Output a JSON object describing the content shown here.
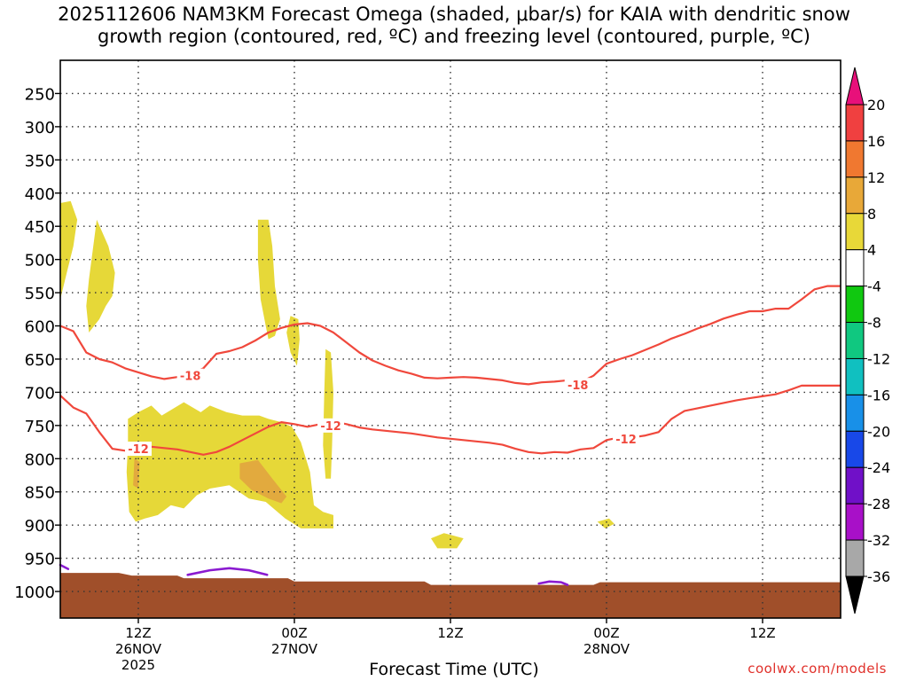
{
  "title": {
    "line1": "2025112606 NAM3KM Forecast Omega (shaded, μbar/s) for KAIA with dendritic snow",
    "line2": "growth region (contoured, red, ºC) and freezing level (contoured, purple, ºC)"
  },
  "credit": "coolwx.com/models",
  "chart_data": {
    "type": "heatmap",
    "xlabel": "Forecast Time (UTC)",
    "ylabel": "",
    "x_unit": "forecast hour from 2025-11-26 06Z",
    "xlim": [
      0,
      60
    ],
    "ylim": [
      1040,
      200
    ],
    "y_ticks": [
      250,
      300,
      350,
      400,
      450,
      500,
      550,
      600,
      650,
      700,
      750,
      800,
      850,
      900,
      950,
      1000
    ],
    "x_ticks": [
      {
        "hour": 6,
        "label": "12Z",
        "sub1": "26NOV",
        "sub2": "2025"
      },
      {
        "hour": 18,
        "label": "00Z",
        "sub1": "27NOV",
        "sub2": ""
      },
      {
        "hour": 30,
        "label": "12Z",
        "sub1": "",
        "sub2": ""
      },
      {
        "hour": 42,
        "label": "00Z",
        "sub1": "28NOV",
        "sub2": ""
      },
      {
        "hour": 54,
        "label": "12Z",
        "sub1": "",
        "sub2": ""
      }
    ],
    "colorbar": {
      "labels": [
        "20",
        "16",
        "12",
        "8",
        "4",
        "-4",
        "-8",
        "-12",
        "-16",
        "-20",
        "-24",
        "-28",
        "-32",
        "-36"
      ],
      "colors": [
        "#f04040",
        "#f07830",
        "#e8a838",
        "#e8d838",
        "#ffffff",
        "#10c810",
        "#10c880",
        "#10c0c0",
        "#1890e8",
        "#1848e8",
        "#7010c8",
        "#a810c8",
        "#a8a8a8"
      ],
      "top_arrow_color": "#e8107a",
      "bottom_arrow_color": "#000000"
    },
    "omega_fill_colors": {
      "4": "#e6d838",
      "8": "#e2aa3e"
    },
    "omega_regions": [
      {
        "level": 4,
        "points": [
          [
            0,
            415
          ],
          [
            0.8,
            412
          ],
          [
            1.3,
            440
          ],
          [
            1.0,
            480
          ],
          [
            0.5,
            520
          ],
          [
            0,
            560
          ]
        ]
      },
      {
        "level": 4,
        "points": [
          [
            2.8,
            440
          ],
          [
            3.7,
            480
          ],
          [
            4.2,
            520
          ],
          [
            4.0,
            555
          ],
          [
            3.5,
            570
          ],
          [
            3.0,
            590
          ],
          [
            2.2,
            610
          ],
          [
            2.0,
            570
          ],
          [
            2.2,
            530
          ]
        ]
      },
      {
        "level": 4,
        "points": [
          [
            15.2,
            440
          ],
          [
            16.0,
            440
          ],
          [
            16.3,
            480
          ],
          [
            16.5,
            540
          ],
          [
            16.9,
            590
          ],
          [
            16.5,
            615
          ],
          [
            16.0,
            620
          ],
          [
            15.8,
            600
          ],
          [
            15.4,
            560
          ],
          [
            15.2,
            500
          ]
        ]
      },
      {
        "level": 4,
        "points": [
          [
            17.7,
            585
          ],
          [
            18.3,
            590
          ],
          [
            18.4,
            620
          ],
          [
            18.2,
            660
          ],
          [
            17.7,
            640
          ],
          [
            17.4,
            610
          ]
        ]
      },
      {
        "level": 4,
        "points": [
          [
            20.4,
            635
          ],
          [
            20.8,
            640
          ],
          [
            21.0,
            700
          ],
          [
            20.9,
            780
          ],
          [
            20.8,
            830
          ],
          [
            20.4,
            830
          ],
          [
            20.2,
            780
          ],
          [
            20.3,
            700
          ]
        ]
      },
      {
        "level": 4,
        "points": [
          [
            5.2,
            740
          ],
          [
            6.0,
            730
          ],
          [
            7.0,
            720
          ],
          [
            7.8,
            735
          ],
          [
            9.5,
            715
          ],
          [
            10.8,
            730
          ],
          [
            11.5,
            720
          ],
          [
            12.8,
            730
          ],
          [
            14.0,
            735
          ],
          [
            15.3,
            735
          ],
          [
            16.0,
            740
          ],
          [
            17.0,
            745
          ],
          [
            17.8,
            752
          ],
          [
            18.5,
            775
          ],
          [
            19.2,
            820
          ],
          [
            19.5,
            870
          ],
          [
            20.2,
            880
          ],
          [
            21.0,
            885
          ],
          [
            21.0,
            905
          ],
          [
            20.0,
            905
          ],
          [
            18.5,
            905
          ],
          [
            17.3,
            890
          ],
          [
            15.8,
            865
          ],
          [
            14.5,
            860
          ],
          [
            13.0,
            840
          ],
          [
            11.5,
            845
          ],
          [
            10.5,
            855
          ],
          [
            9.5,
            875
          ],
          [
            8.5,
            870
          ],
          [
            7.5,
            885
          ],
          [
            6.5,
            890
          ],
          [
            5.8,
            895
          ],
          [
            5.3,
            880
          ],
          [
            5.1,
            820
          ],
          [
            5.2,
            780
          ]
        ]
      },
      {
        "level": 8,
        "points": [
          [
            13.8,
            807
          ],
          [
            15.2,
            802
          ],
          [
            16.3,
            830
          ],
          [
            17.4,
            857
          ],
          [
            17.0,
            867
          ],
          [
            16.0,
            860
          ],
          [
            14.7,
            847
          ],
          [
            13.8,
            830
          ]
        ]
      },
      {
        "level": 8,
        "points": [
          [
            5.7,
            800
          ],
          [
            6.1,
            805
          ],
          [
            6.0,
            845
          ],
          [
            5.6,
            840
          ]
        ]
      },
      {
        "level": 4,
        "points": [
          [
            28.5,
            920
          ],
          [
            29.5,
            912
          ],
          [
            31.0,
            920
          ],
          [
            30.5,
            935
          ],
          [
            29.0,
            935
          ]
        ]
      },
      {
        "level": 4,
        "points": [
          [
            41.3,
            895
          ],
          [
            42.2,
            890
          ],
          [
            42.6,
            898
          ],
          [
            41.9,
            905
          ]
        ]
      }
    ],
    "isotherms": [
      {
        "label": "-18",
        "color": "#f0483c",
        "label_points": [
          [
            10.0,
            675
          ],
          [
            39.8,
            689
          ]
        ],
        "x": [
          0,
          1,
          2,
          3,
          4,
          5,
          6,
          7,
          8,
          9,
          10,
          11,
          12,
          13,
          14,
          15,
          16,
          17,
          18,
          19,
          20,
          21,
          22,
          23,
          24,
          25,
          26,
          27,
          28,
          29,
          30,
          31,
          32,
          33,
          34,
          35,
          36,
          37,
          38,
          39,
          40,
          41,
          42,
          43,
          44,
          45,
          46,
          47,
          48,
          49,
          50,
          51,
          52,
          53,
          54,
          55,
          56,
          57,
          58,
          59,
          60
        ],
        "y": [
          600,
          608,
          640,
          650,
          655,
          664,
          670,
          676,
          680,
          677,
          673,
          664,
          642,
          638,
          632,
          622,
          610,
          603,
          598,
          596,
          600,
          610,
          625,
          640,
          652,
          660,
          667,
          672,
          678,
          679,
          678,
          677,
          678,
          680,
          682,
          686,
          688,
          685,
          684,
          682,
          685,
          675,
          657,
          650,
          644,
          636,
          628,
          619,
          612,
          604,
          597,
          589,
          583,
          578,
          578,
          574,
          574,
          560,
          545,
          540,
          540
        ]
      },
      {
        "label": "-12",
        "color": "#f0483c",
        "label_points": [
          [
            6.0,
            785
          ],
          [
            20.8,
            750
          ],
          [
            43.5,
            770
          ]
        ],
        "x": [
          0,
          1,
          2,
          3,
          4,
          5,
          6,
          7,
          8,
          9,
          10,
          11,
          12,
          13,
          14,
          15,
          16,
          17,
          18,
          19,
          20,
          21,
          22,
          23,
          24,
          25,
          26,
          27,
          28,
          29,
          30,
          31,
          32,
          33,
          34,
          35,
          36,
          37,
          38,
          39,
          40,
          41,
          42,
          43,
          44,
          45,
          46,
          47,
          48,
          49,
          50,
          51,
          52,
          53,
          54,
          55,
          56,
          57,
          58,
          59,
          60
        ],
        "y": [
          705,
          723,
          732,
          760,
          785,
          788,
          785,
          782,
          784,
          786,
          790,
          794,
          790,
          782,
          772,
          762,
          752,
          745,
          748,
          752,
          748,
          744,
          748,
          753,
          756,
          758,
          760,
          762,
          765,
          768,
          770,
          772,
          774,
          776,
          779,
          785,
          790,
          792,
          790,
          791,
          786,
          784,
          772,
          768,
          768,
          765,
          760,
          740,
          728,
          724,
          720,
          716,
          712,
          709,
          706,
          703,
          697,
          690,
          690,
          690,
          690
        ]
      }
    ],
    "freezing_level": {
      "color": "#8a1ad0",
      "segments": [
        [
          [
            0,
            960
          ],
          [
            0.6,
            966
          ]
        ],
        [
          [
            9.8,
            975
          ],
          [
            11.5,
            968
          ],
          [
            13.0,
            965
          ],
          [
            14.5,
            968
          ],
          [
            15.9,
            975
          ]
        ],
        [
          [
            36.8,
            988
          ],
          [
            37.6,
            985
          ],
          [
            38.5,
            986
          ],
          [
            39.0,
            990
          ]
        ]
      ]
    },
    "terrain": {
      "color": "#a04f2a",
      "surface": [
        [
          0,
          972
        ],
        [
          4.5,
          972
        ],
        [
          5.5,
          976
        ],
        [
          9.0,
          976
        ],
        [
          9.5,
          980
        ],
        [
          17.5,
          980
        ],
        [
          18.0,
          985
        ],
        [
          28.0,
          985
        ],
        [
          28.5,
          990
        ],
        [
          41.0,
          990
        ],
        [
          41.5,
          986
        ],
        [
          60,
          986
        ]
      ]
    }
  }
}
